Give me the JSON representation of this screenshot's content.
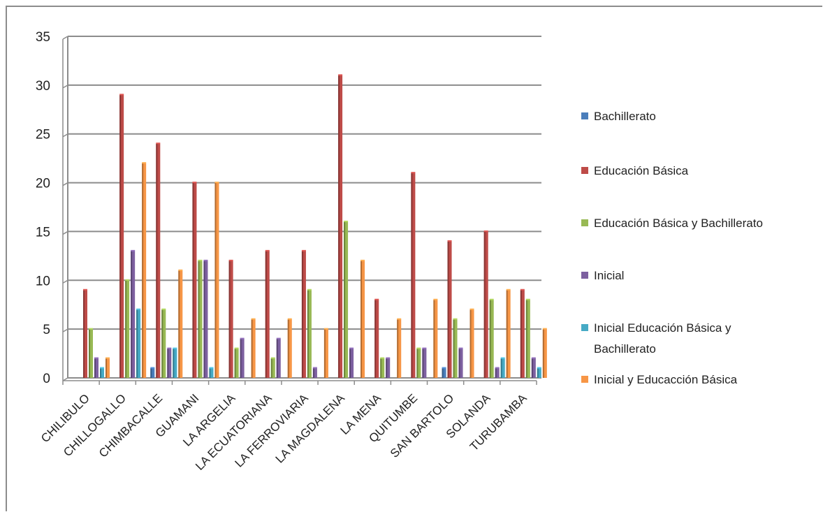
{
  "chart_data": {
    "type": "bar",
    "categories": [
      "CHILIBULO",
      "CHILLOGALLO",
      "CHIMBACALLE",
      "GUAMANI",
      "LA ARGELIA",
      "LA ECUATORIANA",
      "LA FERROVIARIA",
      "LA MAGDALENA",
      "LA MENA",
      "QUITUMBE",
      "SAN BARTOLO",
      "SOLANDA",
      "TURUBAMBA"
    ],
    "ylim": [
      0,
      35
    ],
    "yticks": [
      0,
      5,
      10,
      15,
      20,
      25,
      30,
      35
    ],
    "grid": true,
    "legend_position": "right",
    "series": [
      {
        "name": "Bachillerato",
        "color": "#4a7ebb",
        "values": [
          0,
          0,
          1,
          0,
          0,
          0,
          0,
          0,
          0,
          0,
          1,
          0,
          0
        ]
      },
      {
        "name": "Educación Básica",
        "color": "#be4b48",
        "values": [
          9,
          29,
          24,
          20,
          12,
          13,
          13,
          31,
          8,
          21,
          14,
          15,
          9
        ]
      },
      {
        "name": "Educación Básica y Bachillerato",
        "color": "#98b954",
        "values": [
          5,
          10,
          7,
          12,
          3,
          2,
          9,
          16,
          2,
          3,
          6,
          8,
          8
        ]
      },
      {
        "name": "Inicial",
        "color": "#7d60a0",
        "values": [
          2,
          13,
          3,
          12,
          4,
          4,
          1,
          3,
          2,
          3,
          3,
          1,
          2
        ]
      },
      {
        "name": "Inicial Educación Básica y Bachillerato",
        "color": "#46aac5",
        "values": [
          1,
          7,
          3,
          1,
          0,
          0,
          0,
          0,
          0,
          0,
          0,
          2,
          1
        ]
      },
      {
        "name": "Inicial y Educacción Básica",
        "color": "#f79646",
        "values": [
          2,
          22,
          11,
          20,
          6,
          6,
          5,
          12,
          6,
          8,
          7,
          9,
          5
        ]
      }
    ]
  }
}
